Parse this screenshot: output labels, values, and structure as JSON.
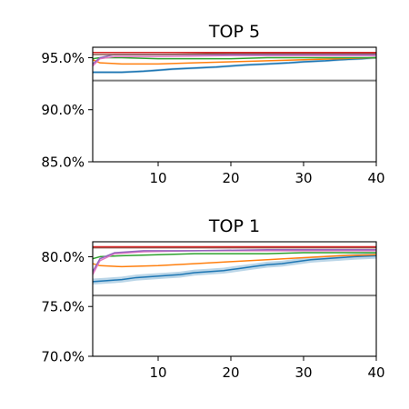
{
  "chart_data": [
    {
      "type": "line",
      "title": "TOP 5",
      "xlabel": "",
      "ylabel": "",
      "xlim": [
        1,
        40
      ],
      "ylim": [
        85,
        96
      ],
      "x_ticks": [
        10,
        20,
        30,
        40
      ],
      "x_tick_labels": [
        "10",
        "20",
        "30",
        "40"
      ],
      "y_ticks": [
        85,
        90,
        95
      ],
      "y_tick_labels": [
        "85.0%",
        "90.0%",
        "95.0%"
      ],
      "grid": false,
      "baseline": {
        "value": 92.8,
        "color": "#7f7f7f"
      },
      "series": [
        {
          "color": "#1f77b4",
          "x": [
            1,
            3,
            5,
            8,
            10,
            12,
            15,
            18,
            20,
            22,
            25,
            28,
            30,
            33,
            35,
            38,
            40
          ],
          "y": [
            93.6,
            93.6,
            93.6,
            93.7,
            93.8,
            93.9,
            94.0,
            94.1,
            94.2,
            94.3,
            94.4,
            94.5,
            94.6,
            94.7,
            94.8,
            94.9,
            95.0
          ],
          "band": 0.12
        },
        {
          "color": "#ff7f0e",
          "x": [
            1,
            2,
            5,
            10,
            15,
            20,
            25,
            30,
            35,
            40
          ],
          "y": [
            94.8,
            94.5,
            94.4,
            94.4,
            94.5,
            94.6,
            94.7,
            94.8,
            94.9,
            95.0
          ]
        },
        {
          "color": "#2ca02c",
          "x": [
            1,
            2,
            5,
            10,
            15,
            20,
            25,
            30,
            35,
            40
          ],
          "y": [
            94.9,
            95.0,
            95.0,
            94.9,
            94.9,
            94.9,
            95.0,
            95.0,
            95.0,
            95.0
          ]
        },
        {
          "color": "#e377c2",
          "x": [
            1,
            2,
            4,
            10,
            20,
            30,
            40
          ],
          "y": [
            94.2,
            94.9,
            95.1,
            95.1,
            95.2,
            95.2,
            95.2
          ]
        },
        {
          "color": "#9467bd",
          "x": [
            1,
            2,
            4,
            10,
            20,
            30,
            40
          ],
          "y": [
            94.4,
            95.0,
            95.3,
            95.3,
            95.3,
            95.3,
            95.3
          ]
        },
        {
          "color": "#8c564b",
          "x": [
            1,
            5,
            10,
            20,
            30,
            40
          ],
          "y": [
            95.3,
            95.3,
            95.3,
            95.4,
            95.4,
            95.4
          ]
        },
        {
          "color": "#d62728",
          "x": [
            1,
            5,
            10,
            20,
            30,
            40
          ],
          "y": [
            95.5,
            95.5,
            95.5,
            95.5,
            95.5,
            95.5
          ]
        }
      ]
    },
    {
      "type": "line",
      "title": "TOP 1",
      "xlabel": "",
      "ylabel": "",
      "xlim": [
        1,
        40
      ],
      "ylim": [
        70,
        81.5
      ],
      "x_ticks": [
        10,
        20,
        30,
        40
      ],
      "x_tick_labels": [
        "10",
        "20",
        "30",
        "40"
      ],
      "y_ticks": [
        70,
        75,
        80
      ],
      "y_tick_labels": [
        "70.0%",
        "75.0%",
        "80.0%"
      ],
      "grid": false,
      "baseline": {
        "value": 76.1,
        "color": "#7f7f7f"
      },
      "series": [
        {
          "color": "#1f77b4",
          "x": [
            1,
            3,
            5,
            7,
            9,
            11,
            13,
            15,
            17,
            19,
            21,
            23,
            25,
            27,
            29,
            31,
            33,
            35,
            37,
            40
          ],
          "y": [
            77.5,
            77.6,
            77.7,
            77.9,
            78.0,
            78.1,
            78.2,
            78.4,
            78.5,
            78.6,
            78.8,
            79.0,
            79.2,
            79.3,
            79.5,
            79.7,
            79.8,
            79.9,
            80.0,
            80.1
          ],
          "band": 0.3
        },
        {
          "color": "#ff7f0e",
          "x": [
            1,
            2,
            5,
            10,
            15,
            20,
            25,
            30,
            35,
            40
          ],
          "y": [
            79.3,
            79.1,
            79.0,
            79.1,
            79.3,
            79.5,
            79.7,
            79.9,
            80.1,
            80.2
          ]
        },
        {
          "color": "#2ca02c",
          "x": [
            1,
            2,
            5,
            10,
            15,
            20,
            25,
            30,
            35,
            40
          ],
          "y": [
            79.8,
            80.0,
            80.1,
            80.2,
            80.3,
            80.3,
            80.3,
            80.4,
            80.4,
            80.4
          ]
        },
        {
          "color": "#e377c2",
          "x": [
            1,
            2,
            4,
            8,
            15,
            25,
            40
          ],
          "y": [
            78.2,
            79.6,
            80.3,
            80.5,
            80.6,
            80.6,
            80.6
          ]
        },
        {
          "color": "#9467bd",
          "x": [
            1,
            2,
            4,
            8,
            15,
            25,
            40
          ],
          "y": [
            78.5,
            79.8,
            80.4,
            80.6,
            80.6,
            80.7,
            80.7
          ]
        },
        {
          "color": "#8c564b",
          "x": [
            1,
            5,
            10,
            20,
            30,
            40
          ],
          "y": [
            80.9,
            80.9,
            80.9,
            80.9,
            80.9,
            80.9
          ]
        },
        {
          "color": "#d62728",
          "x": [
            1,
            5,
            10,
            20,
            30,
            40
          ],
          "y": [
            81.0,
            81.0,
            81.0,
            81.0,
            81.0,
            81.0
          ]
        }
      ]
    }
  ]
}
